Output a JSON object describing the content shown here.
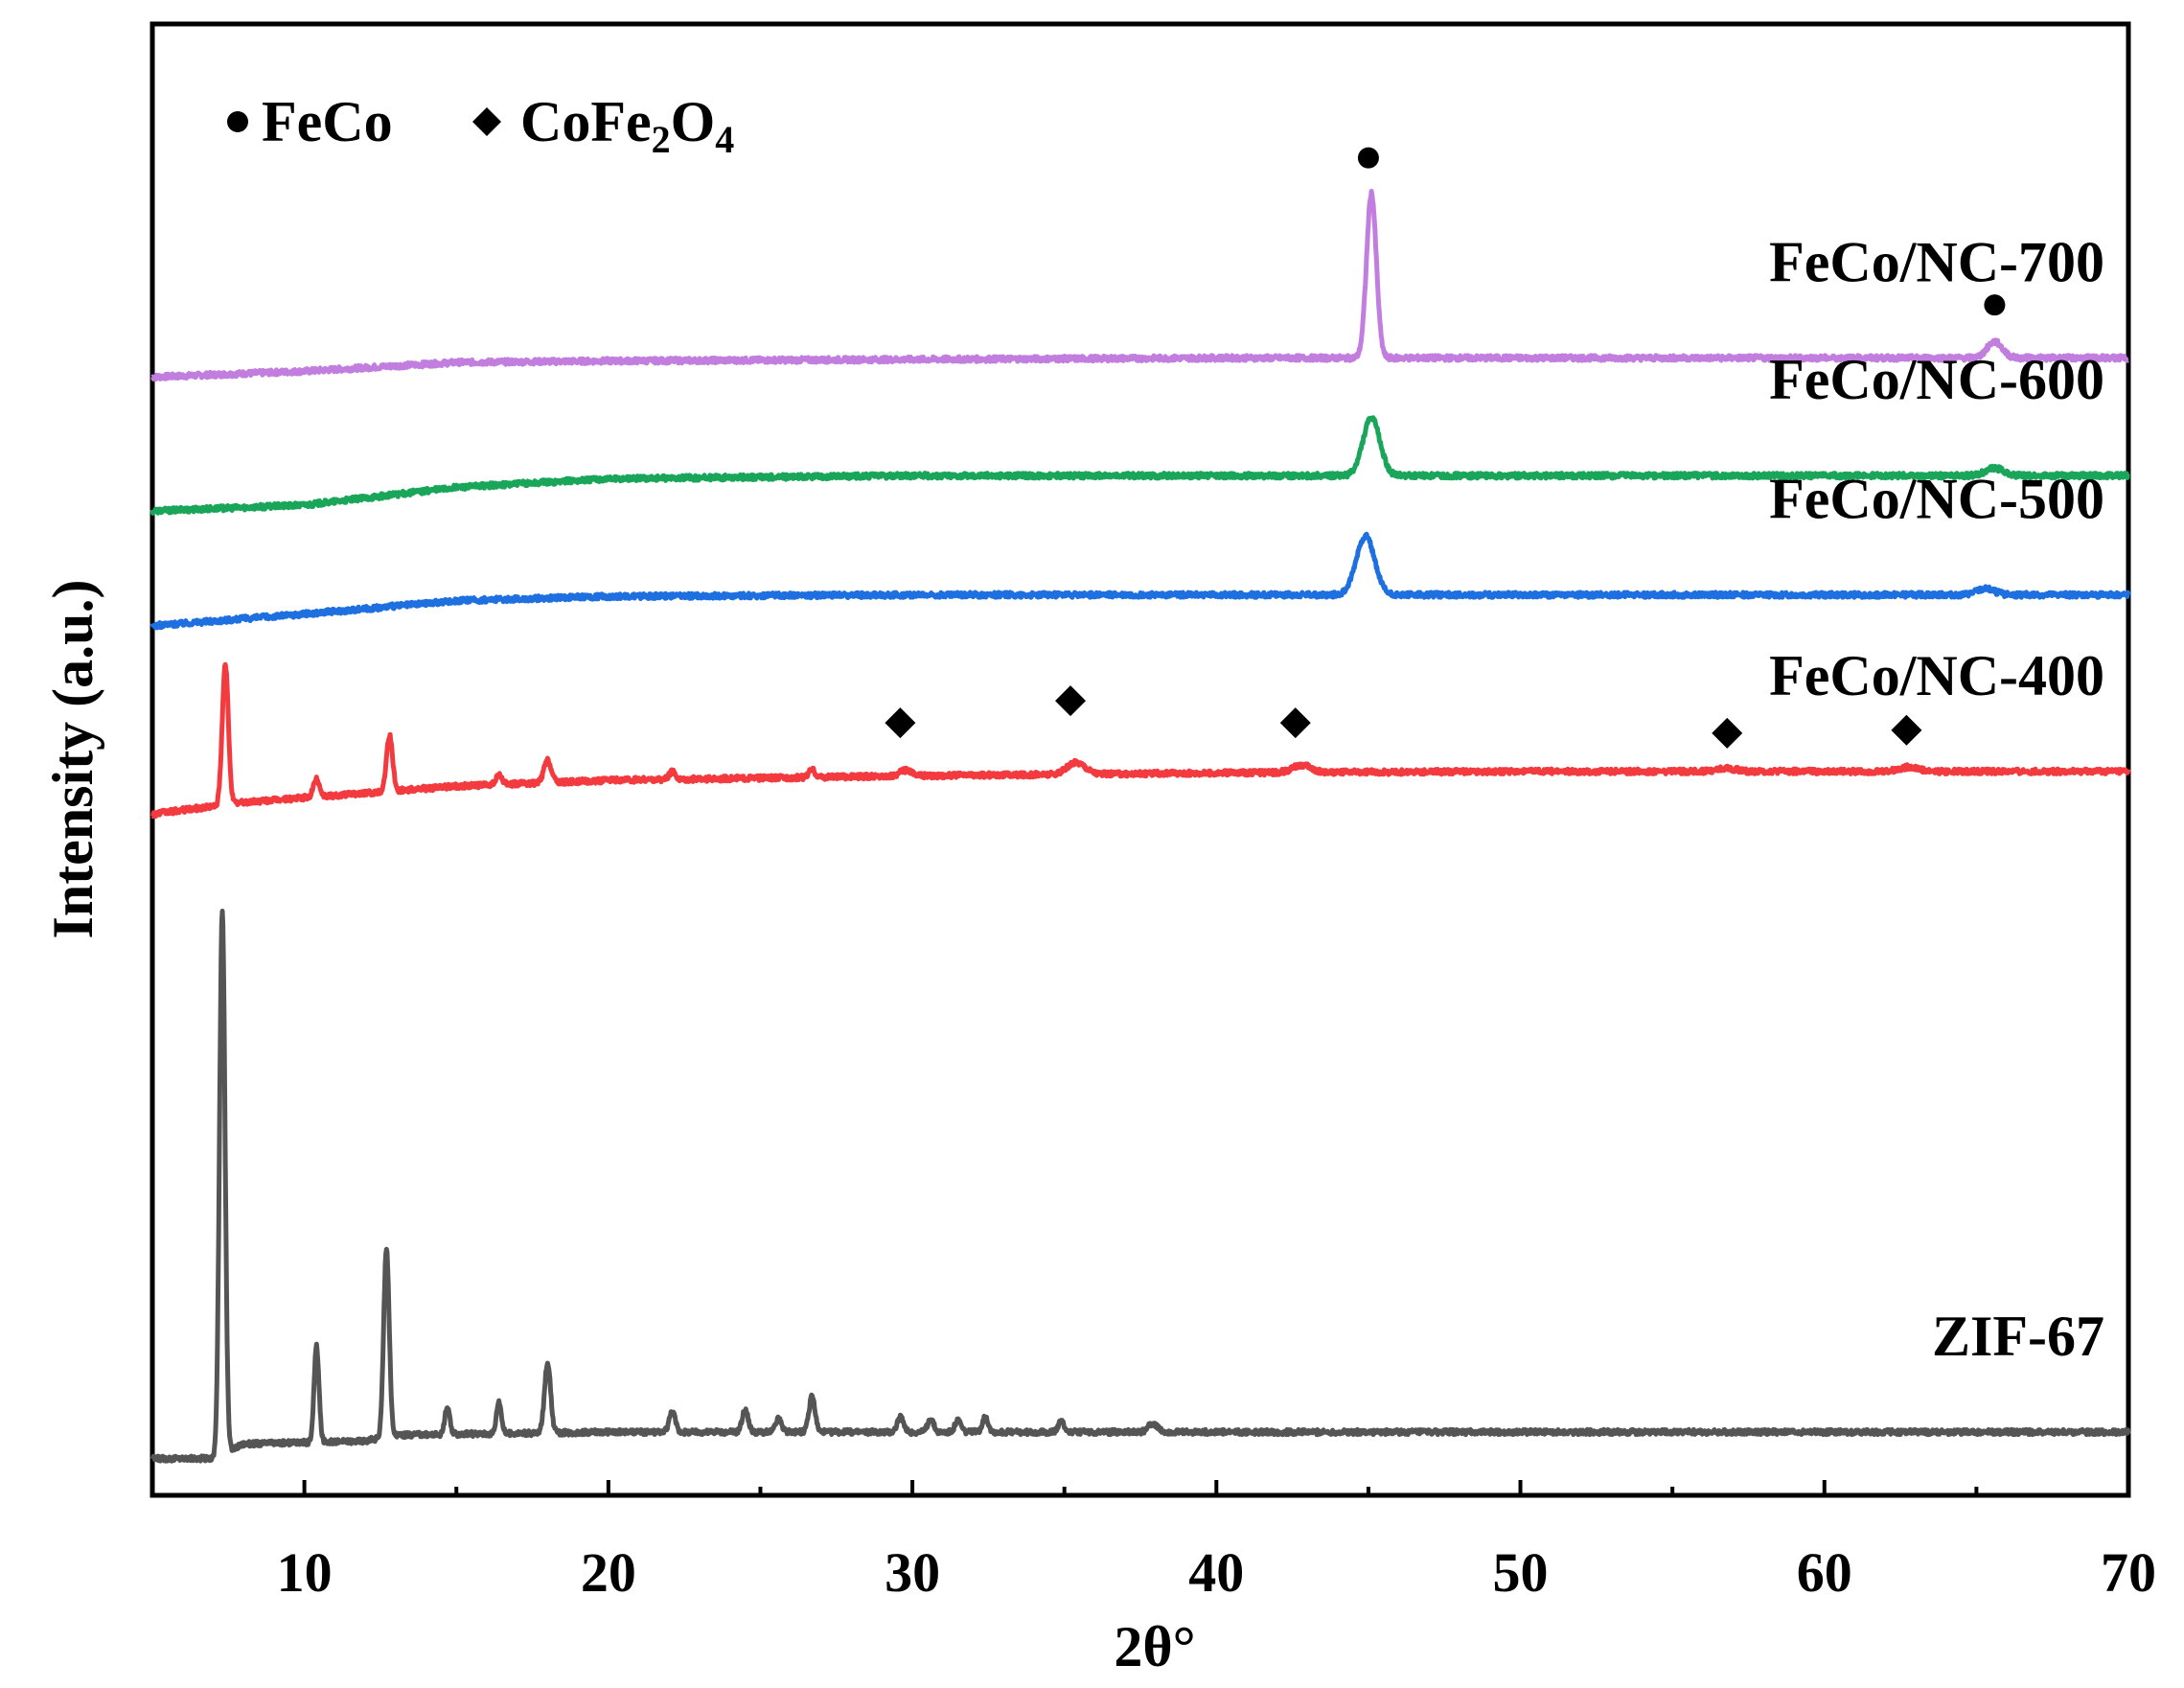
{
  "chart_data": {
    "type": "line",
    "xlabel": "2θ°",
    "ylabel": "Intensity (a.u.)",
    "xlim": [
      5,
      70
    ],
    "ylim": [
      0,
      100
    ],
    "xticks": [
      10,
      20,
      30,
      40,
      50,
      60,
      70
    ],
    "grid": false,
    "legend": {
      "placement": "top-left",
      "entries": [
        {
          "marker": "circle",
          "label": "FeCo",
          "color": "#000000"
        },
        {
          "marker": "diamond",
          "label": "CoFe",
          "sub1": "2",
          "mid": "O",
          "sub2": "4",
          "color": "#000000"
        }
      ]
    },
    "series": [
      {
        "name": "FeCo/NC-700",
        "color": "#c27ede",
        "baseline": [
          [
            5,
            76.0
          ],
          [
            10,
            76.4
          ],
          [
            15,
            77.0
          ],
          [
            20,
            77.1
          ],
          [
            30,
            77.2
          ],
          [
            40,
            77.3
          ],
          [
            50,
            77.3
          ],
          [
            60,
            77.3
          ],
          [
            70,
            77.3
          ]
        ],
        "peaks": [
          {
            "x": 45.1,
            "h": 11.2,
            "w": 0.16
          },
          {
            "x": 65.6,
            "h": 1.1,
            "w": 0.25
          }
        ],
        "markers": [
          {
            "x": 45.0,
            "y": 90.9,
            "shape": "circle"
          },
          {
            "x": 65.6,
            "y": 80.9,
            "shape": "circle"
          }
        ]
      },
      {
        "name": "FeCo/NC-600",
        "color": "#1aa65a",
        "baseline": [
          [
            5,
            66.9
          ],
          [
            10,
            67.3
          ],
          [
            15,
            68.5
          ],
          [
            20,
            69.1
          ],
          [
            30,
            69.3
          ],
          [
            40,
            69.3
          ],
          [
            50,
            69.3
          ],
          [
            60,
            69.3
          ],
          [
            70,
            69.3
          ]
        ],
        "peaks": [
          {
            "x": 45.1,
            "h": 3.9,
            "w": 0.28
          },
          {
            "x": 65.6,
            "h": 0.5,
            "w": 0.3
          }
        ],
        "markers": []
      },
      {
        "name": "FeCo/NC-500",
        "color": "#1e6fe0",
        "baseline": [
          [
            5,
            59.1
          ],
          [
            10,
            59.9
          ],
          [
            15,
            60.8
          ],
          [
            20,
            61.1
          ],
          [
            30,
            61.2
          ],
          [
            40,
            61.2
          ],
          [
            50,
            61.2
          ],
          [
            60,
            61.2
          ],
          [
            70,
            61.2
          ]
        ],
        "peaks": [
          {
            "x": 44.9,
            "h": 4.0,
            "w": 0.3
          },
          {
            "x": 65.3,
            "h": 0.4,
            "w": 0.3
          }
        ],
        "markers": []
      },
      {
        "name": "FeCo/NC-400",
        "color": "#f23a3f",
        "baseline": [
          [
            5,
            46.3
          ],
          [
            8,
            47.1
          ],
          [
            15,
            48.2
          ],
          [
            20,
            48.6
          ],
          [
            30,
            48.9
          ],
          [
            40,
            49.1
          ],
          [
            50,
            49.2
          ],
          [
            60,
            49.2
          ],
          [
            70,
            49.2
          ]
        ],
        "peaks": [
          {
            "x": 7.4,
            "h": 9.5,
            "w": 0.1
          },
          {
            "x": 10.4,
            "h": 1.2,
            "w": 0.1
          },
          {
            "x": 12.8,
            "h": 3.8,
            "w": 0.1
          },
          {
            "x": 16.4,
            "h": 0.6,
            "w": 0.1
          },
          {
            "x": 18.0,
            "h": 1.5,
            "w": 0.12
          },
          {
            "x": 22.1,
            "h": 0.5,
            "w": 0.1
          },
          {
            "x": 26.7,
            "h": 0.5,
            "w": 0.1
          },
          {
            "x": 29.8,
            "h": 0.4,
            "w": 0.2
          },
          {
            "x": 35.4,
            "h": 0.8,
            "w": 0.3
          },
          {
            "x": 42.8,
            "h": 0.5,
            "w": 0.3
          },
          {
            "x": 56.8,
            "h": 0.2,
            "w": 0.3
          },
          {
            "x": 62.8,
            "h": 0.3,
            "w": 0.3
          }
        ],
        "markers": [
          {
            "x": 29.6,
            "y": 52.5,
            "shape": "diamond"
          },
          {
            "x": 35.2,
            "y": 54.0,
            "shape": "diamond"
          },
          {
            "x": 42.6,
            "y": 52.5,
            "shape": "diamond"
          },
          {
            "x": 56.8,
            "y": 51.8,
            "shape": "diamond"
          },
          {
            "x": 62.7,
            "y": 52.0,
            "shape": "diamond"
          }
        ]
      },
      {
        "name": "ZIF-67",
        "color": "#555555",
        "baseline": [
          [
            5,
            2.5
          ],
          [
            7,
            2.5
          ],
          [
            8,
            3.5
          ],
          [
            12,
            3.7
          ],
          [
            13,
            4.1
          ],
          [
            20,
            4.3
          ],
          [
            30,
            4.3
          ],
          [
            40,
            4.3
          ],
          [
            50,
            4.3
          ],
          [
            60,
            4.3
          ],
          [
            70,
            4.3
          ]
        ],
        "peaks": [
          {
            "x": 7.3,
            "h": 37.0,
            "w": 0.09
          },
          {
            "x": 10.4,
            "h": 6.5,
            "w": 0.08
          },
          {
            "x": 12.7,
            "h": 12.9,
            "w": 0.09
          },
          {
            "x": 14.7,
            "h": 1.8,
            "w": 0.08
          },
          {
            "x": 16.4,
            "h": 2.2,
            "w": 0.08
          },
          {
            "x": 18.0,
            "h": 4.8,
            "w": 0.1
          },
          {
            "x": 22.1,
            "h": 1.4,
            "w": 0.1
          },
          {
            "x": 24.5,
            "h": 1.5,
            "w": 0.1
          },
          {
            "x": 25.6,
            "h": 0.9,
            "w": 0.1
          },
          {
            "x": 26.7,
            "h": 2.4,
            "w": 0.1
          },
          {
            "x": 29.6,
            "h": 1.0,
            "w": 0.1
          },
          {
            "x": 30.6,
            "h": 0.9,
            "w": 0.1
          },
          {
            "x": 31.5,
            "h": 0.8,
            "w": 0.1
          },
          {
            "x": 32.4,
            "h": 1.0,
            "w": 0.1
          },
          {
            "x": 34.9,
            "h": 0.7,
            "w": 0.1
          },
          {
            "x": 37.9,
            "h": 0.6,
            "w": 0.15
          }
        ],
        "markers": []
      }
    ]
  }
}
